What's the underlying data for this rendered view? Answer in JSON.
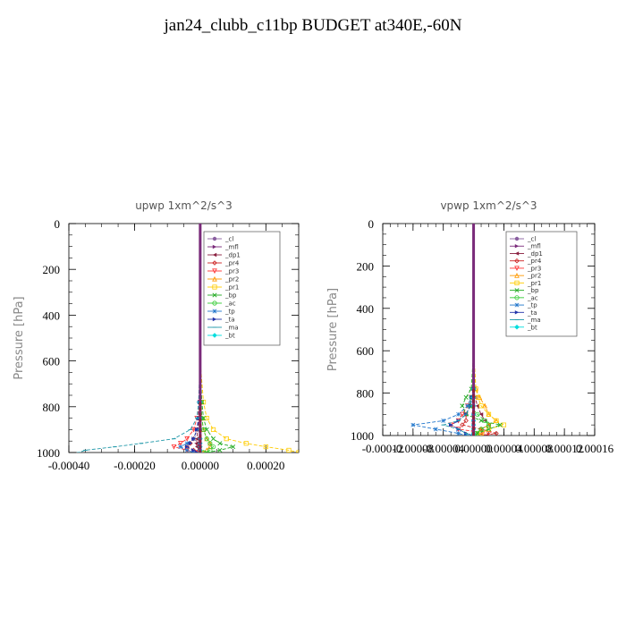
{
  "title": "jan24_clubb_c11bp  BUDGET at340E,-60N",
  "legend_colors": {
    "_cl": "#8a5fa0",
    "_mfl": "#7a2a7a",
    "_dp1": "#8a2040",
    "_pr4": "#cc2222",
    "_pr3": "#ff3333",
    "_pr2": "#ff9900",
    "_pr1": "#ffcc00",
    "_bp": "#22aa22",
    "_ac": "#33cc33",
    "_tp": "#2277cc",
    "_ta": "#2233aa",
    "_ma": "#2299aa",
    "_bt": "#00dddd"
  },
  "chart_data": [
    {
      "type": "line",
      "title": "upwp   1xm^2/s^3",
      "ylabel": "Pressure [hPa]",
      "xlim": [
        -0.0004,
        0.0003
      ],
      "ylim": [
        1000,
        0
      ],
      "x_ticks": [
        -0.0004,
        -0.0002,
        0.0,
        0.0002
      ],
      "x_tick_labels": [
        "-0.00040",
        "-0.00020",
        "0.00000",
        "0.00020"
      ],
      "y_ticks": [
        0,
        200,
        400,
        600,
        800,
        1000
      ],
      "y_tick_labels": [
        "0",
        "200",
        "400",
        "600",
        "800",
        "1000"
      ],
      "legend": [
        "_cl",
        "_mfl",
        "_dp1",
        "_pr4",
        "_pr3",
        "_pr2",
        "_pr1",
        "_bp",
        "_ac",
        "_tp",
        "_ta",
        "_ma",
        "_bt"
      ],
      "legend_position": "top-right",
      "y": [
        0,
        200,
        400,
        600,
        780,
        850,
        900,
        940,
        960,
        975,
        990,
        1000
      ],
      "series": [
        {
          "name": "_cl",
          "values": [
            0,
            0,
            0,
            0,
            0,
            0,
            0,
            0,
            0,
            0,
            0,
            0
          ]
        },
        {
          "name": "_mfl",
          "values": [
            0,
            0,
            0,
            0,
            0,
            0,
            0,
            0,
            0,
            0,
            0,
            0
          ]
        },
        {
          "name": "_dp1",
          "values": [
            0,
            0,
            0,
            0,
            0,
            -3e-06,
            -8e-06,
            -1e-05,
            -1.2e-05,
            -1e-05,
            -5e-06,
            0
          ]
        },
        {
          "name": "_pr4",
          "values": [
            0,
            0,
            0,
            0,
            0,
            -5e-06,
            -1e-05,
            -2e-05,
            -3e-05,
            -4e-05,
            -2e-05,
            0
          ]
        },
        {
          "name": "_pr3",
          "values": [
            0,
            0,
            0,
            0,
            0,
            -1e-05,
            -2e-05,
            -4e-05,
            -6e-05,
            -8e-05,
            -4e-05,
            -1e-05
          ]
        },
        {
          "name": "_pr2",
          "values": [
            0,
            0,
            0,
            0,
            2e-06,
            5e-06,
            1e-05,
            2e-05,
            3e-05,
            3e-05,
            2e-05,
            1e-05
          ]
        },
        {
          "name": "_pr1",
          "values": [
            0,
            0,
            0,
            0,
            1e-05,
            2e-05,
            4e-05,
            8e-05,
            0.00014,
            0.0002,
            0.00027,
            0.0003
          ]
        },
        {
          "name": "_bp",
          "values": [
            0,
            0,
            0,
            0,
            5e-06,
            1e-05,
            2e-05,
            4e-05,
            6e-05,
            0.0001,
            6e-05,
            2e-05
          ]
        },
        {
          "name": "_ac",
          "values": [
            0,
            0,
            0,
            0,
            3e-06,
            5e-06,
            1e-05,
            2e-05,
            3e-05,
            4e-05,
            3e-05,
            1e-05
          ]
        },
        {
          "name": "_tp",
          "values": [
            0,
            0,
            0,
            0,
            -2e-06,
            -5e-06,
            -1e-05,
            -2e-05,
            -4e-05,
            -6e-05,
            -4e-05,
            -2e-05
          ]
        },
        {
          "name": "_ta",
          "values": [
            0,
            0,
            0,
            0,
            -2e-06,
            -5e-06,
            -1e-05,
            -2e-05,
            -3e-05,
            -4e-05,
            -2e-05,
            -1e-05
          ]
        },
        {
          "name": "_ma",
          "values": [
            0,
            0,
            0,
            0,
            -5e-06,
            -1e-05,
            -3e-05,
            -8e-05,
            -0.00018,
            -0.00026,
            -0.00035,
            -0.00037
          ]
        },
        {
          "name": "_bt",
          "values": [
            0,
            0,
            0,
            0,
            0,
            0,
            0,
            0,
            0,
            0,
            0,
            0
          ]
        }
      ]
    },
    {
      "type": "line",
      "title": "vpwp   1xm^2/s^3",
      "ylabel": "Pressure [hPa]",
      "xlim": [
        -0.00012,
        0.00016
      ],
      "ylim": [
        1000,
        0
      ],
      "x_ticks": [
        -0.00012,
        -8e-05,
        -4e-05,
        0.0,
        4e-05,
        8e-05,
        0.00012,
        0.00016
      ],
      "x_tick_labels": [
        "-0.00012",
        "-0.00008",
        "-0.00004",
        "0.00000",
        "0.00004",
        "0.00008",
        "0.00012",
        "0.00016"
      ],
      "y_ticks": [
        0,
        200,
        400,
        600,
        800,
        1000
      ],
      "y_tick_labels": [
        "0",
        "200",
        "400",
        "600",
        "800",
        "1000"
      ],
      "legend": [
        "_cl",
        "_mfl",
        "_dp1",
        "_pr4",
        "_pr3",
        "_pr2",
        "_pr1",
        "_bp",
        "_ac",
        "_tp",
        "_ta",
        "_ma",
        "_bt"
      ],
      "legend_position": "top-right",
      "y": [
        0,
        200,
        400,
        600,
        780,
        820,
        860,
        900,
        930,
        950,
        970,
        990,
        1000
      ],
      "series": [
        {
          "name": "_cl",
          "values": [
            0,
            0,
            0,
            0,
            0,
            0,
            0,
            0,
            0,
            0,
            0,
            0,
            0
          ]
        },
        {
          "name": "_mfl",
          "values": [
            0,
            0,
            0,
            0,
            0,
            0,
            0,
            0,
            0,
            0,
            0,
            0,
            0
          ]
        },
        {
          "name": "_dp1",
          "values": [
            0,
            0,
            0,
            0,
            0,
            2e-06,
            5e-06,
            1e-05,
            1.5e-05,
            2e-05,
            1e-05,
            5e-06,
            0
          ]
        },
        {
          "name": "_pr4",
          "values": [
            0,
            0,
            0,
            0,
            0,
            -2e-06,
            -5e-06,
            -1e-05,
            -1e-05,
            -1.5e-05,
            1e-05,
            3e-05,
            1e-05
          ]
        },
        {
          "name": "_pr3",
          "values": [
            0,
            0,
            0,
            0,
            0,
            -3e-06,
            -8e-06,
            -1.5e-05,
            -2e-05,
            -3e-05,
            -2e-05,
            2e-05,
            1e-05
          ]
        },
        {
          "name": "_pr2",
          "values": [
            0,
            0,
            0,
            0,
            3e-06,
            8e-06,
            1.5e-05,
            2e-05,
            3e-05,
            2e-05,
            1e-05,
            5e-06,
            0
          ]
        },
        {
          "name": "_pr1",
          "values": [
            0,
            0,
            0,
            0,
            3e-06,
            6e-06,
            1e-05,
            2e-05,
            3e-05,
            4e-05,
            2e-05,
            1e-05,
            5e-06
          ]
        },
        {
          "name": "_bp",
          "values": [
            0,
            0,
            0,
            0,
            -3e-06,
            -1e-05,
            -1.5e-05,
            -1e-05,
            1e-05,
            3.5e-05,
            2e-05,
            5e-06,
            0
          ]
        },
        {
          "name": "_ac",
          "values": [
            0,
            0,
            0,
            0,
            0,
            -3e-06,
            -5e-06,
            5e-06,
            1.5e-05,
            2e-05,
            1e-05,
            3e-06,
            0
          ]
        },
        {
          "name": "_tp",
          "values": [
            0,
            0,
            0,
            0,
            0,
            -3e-06,
            -8e-06,
            -2e-05,
            -4e-05,
            -8e-05,
            -5e-05,
            -2e-05,
            -1e-05
          ]
        },
        {
          "name": "_ta",
          "values": [
            0,
            0,
            0,
            0,
            0,
            -2e-06,
            -4e-06,
            -1e-05,
            -2e-05,
            -3e-05,
            -2e-05,
            -1e-05,
            0
          ]
        },
        {
          "name": "_ma",
          "values": [
            0,
            0,
            0,
            0,
            0,
            -2e-06,
            -5e-06,
            -1e-05,
            -2e-05,
            -4e-05,
            -2e-05,
            -1e-05,
            -5e-06
          ]
        },
        {
          "name": "_bt",
          "values": [
            0,
            0,
            0,
            0,
            0,
            0,
            0,
            0,
            0,
            0,
            0,
            0,
            0
          ]
        }
      ]
    }
  ]
}
